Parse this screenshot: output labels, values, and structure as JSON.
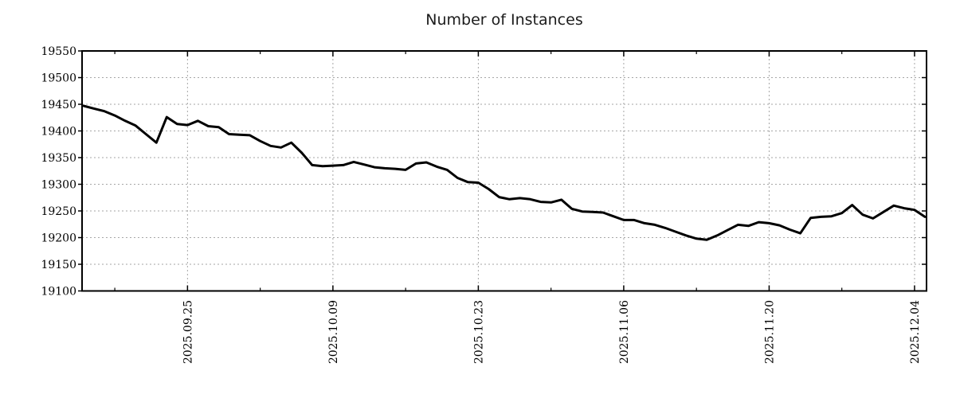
{
  "title": "Number of Instances",
  "chart_data": {
    "type": "line",
    "title": "Number of Instances",
    "xlabel": "",
    "ylabel": "",
    "ylim": [
      19100,
      19550
    ],
    "ytick_step": 50,
    "yticks": [
      19100,
      19150,
      19200,
      19250,
      19300,
      19350,
      19400,
      19450,
      19500,
      19550
    ],
    "xtick_labels": [
      "2025.09.25",
      "2025.10.09",
      "2025.10.23",
      "2025.11.06",
      "2025.11.20",
      "2025.12.04"
    ],
    "xtick_days": [
      10,
      24,
      38,
      52,
      66,
      80
    ],
    "minor_xtick_days": [
      3,
      17,
      31,
      45,
      59,
      73
    ],
    "grid": true,
    "grid_style": "dotted",
    "legend_position": "none",
    "line_color": "#000000",
    "grid_color": "#a6a6a6",
    "border_color": "#000000",
    "x": [
      "2025.09.15",
      "2025.09.16",
      "2025.09.17",
      "2025.09.18",
      "2025.09.19",
      "2025.09.20",
      "2025.09.21",
      "2025.09.22",
      "2025.09.23",
      "2025.09.24",
      "2025.09.25",
      "2025.09.26",
      "2025.09.27",
      "2025.09.28",
      "2025.09.29",
      "2025.09.30",
      "2025.10.01",
      "2025.10.02",
      "2025.10.03",
      "2025.10.04",
      "2025.10.05",
      "2025.10.06",
      "2025.10.07",
      "2025.10.08",
      "2025.10.09",
      "2025.10.10",
      "2025.10.11",
      "2025.10.12",
      "2025.10.13",
      "2025.10.14",
      "2025.10.15",
      "2025.10.16",
      "2025.10.17",
      "2025.10.18",
      "2025.10.19",
      "2025.10.20",
      "2025.10.21",
      "2025.10.22",
      "2025.10.23",
      "2025.10.24",
      "2025.10.25",
      "2025.10.26",
      "2025.10.27",
      "2025.10.28",
      "2025.10.29",
      "2025.10.30",
      "2025.10.31",
      "2025.11.01",
      "2025.11.02",
      "2025.11.03",
      "2025.11.04",
      "2025.11.05",
      "2025.11.06",
      "2025.11.07",
      "2025.11.08",
      "2025.11.09",
      "2025.11.10",
      "2025.11.11",
      "2025.11.12",
      "2025.11.13",
      "2025.11.14",
      "2025.11.15",
      "2025.11.16",
      "2025.11.17",
      "2025.11.18",
      "2025.11.19",
      "2025.11.20",
      "2025.11.21",
      "2025.11.22",
      "2025.11.23",
      "2025.11.24",
      "2025.11.25",
      "2025.11.26",
      "2025.11.27",
      "2025.11.28",
      "2025.11.29",
      "2025.11.30",
      "2025.12.01",
      "2025.12.02",
      "2025.12.03",
      "2025.12.04",
      "2025.12.05"
    ],
    "values": [
      19447,
      19442,
      19437,
      19429,
      19419,
      19410,
      19394,
      19378,
      19426,
      19413,
      19411,
      19419,
      19409,
      19407,
      19394,
      19393,
      19392,
      19381,
      19372,
      19369,
      19378,
      19359,
      19336,
      19334,
      19335,
      19336,
      19342,
      19337,
      19332,
      19330,
      19329,
      19327,
      19339,
      19341,
      19333,
      19327,
      19312,
      19304,
      19303,
      19291,
      19276,
      19272,
      19274,
      19272,
      19267,
      19266,
      19271,
      19254,
      19249,
      19248,
      19247,
      19240,
      19233,
      19233,
      19227,
      19224,
      19218,
      19211,
      19204,
      19198,
      19196,
      19204,
      19214,
      19224,
      19222,
      19229,
      19227,
      19223,
      19215,
      19208,
      19237,
      19239,
      19240,
      19246,
      19261,
      19243,
      19236,
      19248,
      19260,
      19255,
      19252,
      19239
    ]
  }
}
